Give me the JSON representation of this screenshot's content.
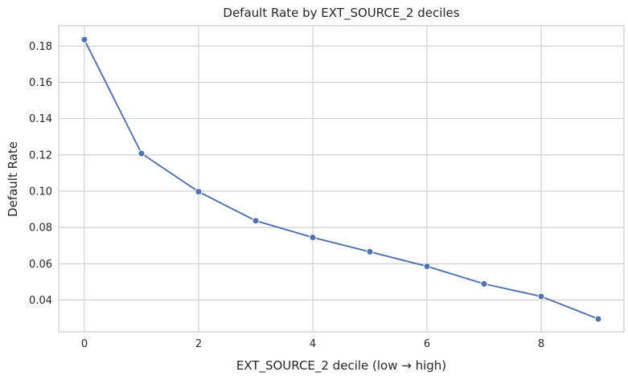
{
  "chart_data": {
    "type": "line",
    "title": "Default Rate by EXT_SOURCE_2 deciles",
    "xlabel": "EXT_SOURCE_2 decile (low → high)",
    "ylabel": "Default Rate",
    "x": [
      0,
      1,
      2,
      3,
      4,
      5,
      6,
      7,
      8,
      9
    ],
    "series": [
      {
        "values": [
          0.1835,
          0.1208,
          0.0997,
          0.0837,
          0.0745,
          0.0666,
          0.0586,
          0.0489,
          0.042,
          0.0296
        ]
      }
    ],
    "xlim": [
      -0.45,
      9.45
    ],
    "ylim": [
      0.0225,
      0.1912
    ],
    "xticks": [
      0,
      2,
      4,
      6,
      8
    ],
    "yticks": [
      0.04,
      0.06,
      0.08,
      0.1,
      0.12,
      0.14,
      0.16,
      0.18
    ],
    "xtick_labels": [
      "0",
      "2",
      "4",
      "6",
      "8"
    ],
    "ytick_labels": [
      "0.04",
      "0.06",
      "0.08",
      "0.10",
      "0.12",
      "0.14",
      "0.16",
      "0.18"
    ],
    "grid": true,
    "marker": "circle",
    "colors": {
      "line": "#4c72b0",
      "grid": "#cccccc",
      "frame": "#cccccc"
    }
  }
}
